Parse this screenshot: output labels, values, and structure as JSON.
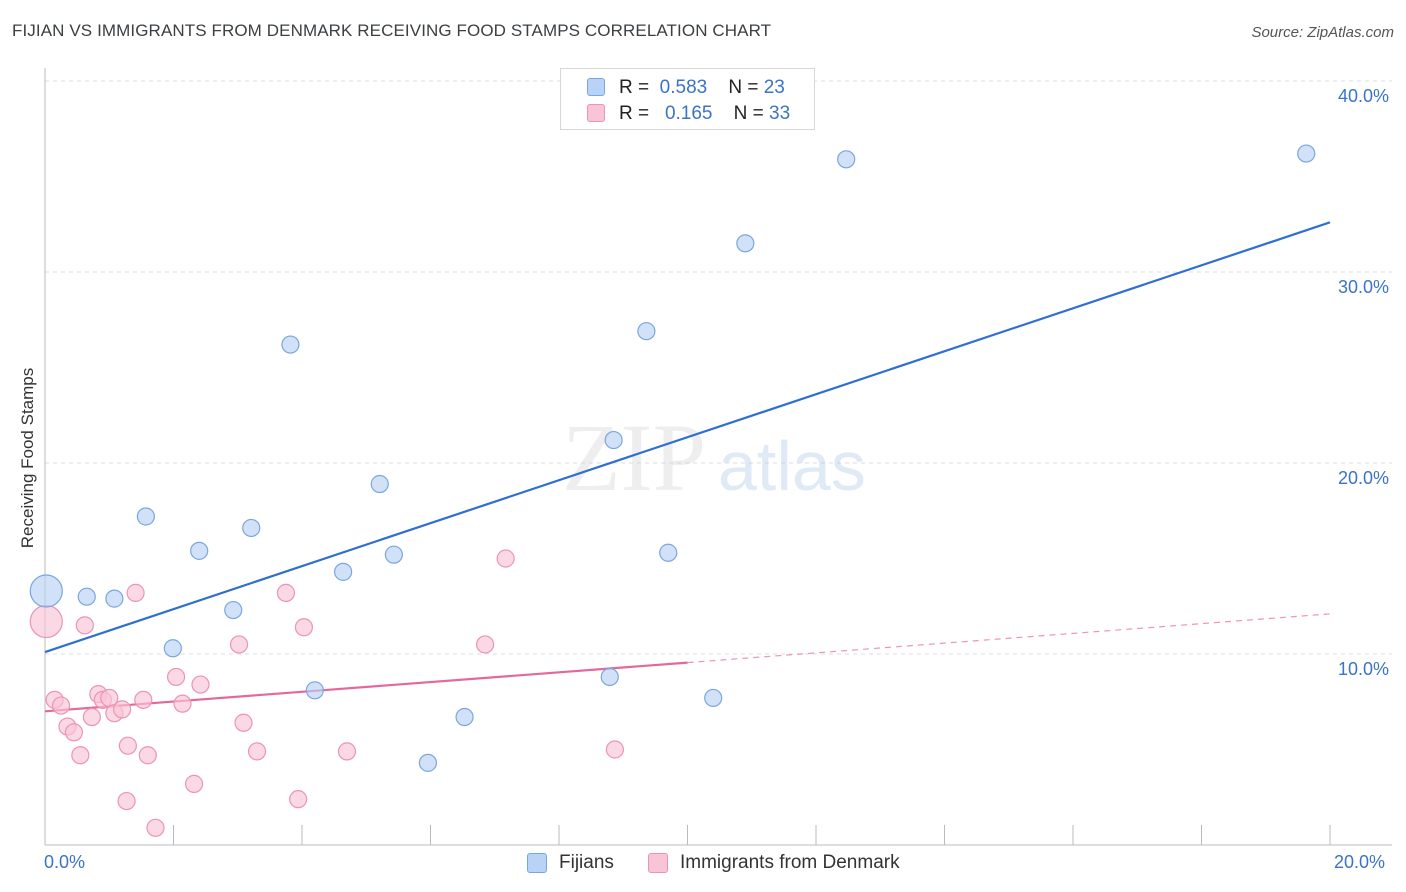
{
  "header": {
    "title": "FIJIAN VS IMMIGRANTS FROM DENMARK RECEIVING FOOD STAMPS CORRELATION CHART",
    "source": "Source: ZipAtlas.com"
  },
  "watermark": {
    "zip": "ZIP",
    "atlas": "atlas"
  },
  "legend_stats": [
    {
      "r_label": "R =",
      "r_value": "0.583",
      "n_label": "N =",
      "n_value": "23"
    },
    {
      "r_label": "R =",
      "r_value": "0.165",
      "n_label": "N =",
      "n_value": "33"
    }
  ],
  "colors": {
    "fijians_fill": "#b8d3f5",
    "fijians_stroke": "#7aa6e0",
    "fijians_line": "#2f6fd1",
    "denmark_fill": "#f9c5d6",
    "denmark_stroke": "#ec93b3",
    "denmark_line": "#e4689a",
    "grid": "#dddddd",
    "tick_text": "#3b73c7"
  },
  "chart_data": {
    "type": "scatter",
    "title": "FIJIAN VS IMMIGRANTS FROM DENMARK RECEIVING FOOD STAMPS CORRELATION CHART",
    "xlabel": "",
    "ylabel": "Receiving Food Stamps",
    "xlim": [
      0,
      20
    ],
    "ylim": [
      0,
      40
    ],
    "x_tick_labels": [
      "0.0%",
      "20.0%"
    ],
    "y_tick_labels": [
      "10.0%",
      "20.0%",
      "30.0%",
      "40.0%"
    ],
    "y_tick_values": [
      10,
      20,
      30,
      40
    ],
    "grid": true,
    "legend_position": "bottom-center",
    "series": [
      {
        "name": "Fijians",
        "r": 0.583,
        "n": 23,
        "points": [
          {
            "x": 0.02,
            "y": 13.3,
            "size": "large"
          },
          {
            "x": 0.65,
            "y": 13.0
          },
          {
            "x": 1.08,
            "y": 12.9
          },
          {
            "x": 1.57,
            "y": 17.2
          },
          {
            "x": 1.99,
            "y": 10.3
          },
          {
            "x": 2.4,
            "y": 15.4
          },
          {
            "x": 2.93,
            "y": 12.3
          },
          {
            "x": 3.21,
            "y": 16.6
          },
          {
            "x": 3.82,
            "y": 26.2
          },
          {
            "x": 4.2,
            "y": 8.1
          },
          {
            "x": 4.64,
            "y": 14.3
          },
          {
            "x": 5.21,
            "y": 18.9
          },
          {
            "x": 5.43,
            "y": 15.2
          },
          {
            "x": 5.96,
            "y": 4.3
          },
          {
            "x": 6.53,
            "y": 6.7
          },
          {
            "x": 8.79,
            "y": 8.8
          },
          {
            "x": 8.85,
            "y": 21.2
          },
          {
            "x": 9.36,
            "y": 26.9
          },
          {
            "x": 9.7,
            "y": 15.3
          },
          {
            "x": 10.4,
            "y": 7.7
          },
          {
            "x": 10.9,
            "y": 31.5
          },
          {
            "x": 12.47,
            "y": 35.9
          },
          {
            "x": 19.63,
            "y": 36.2
          }
        ],
        "trend": {
          "x0": 0,
          "y0": 10.1,
          "x1": 20,
          "y1": 32.6,
          "dashed_from": null
        }
      },
      {
        "name": "Immigrants from Denmark",
        "r": 0.165,
        "n": 33,
        "points": [
          {
            "x": 0.02,
            "y": 11.7,
            "size": "large"
          },
          {
            "x": 0.15,
            "y": 7.6
          },
          {
            "x": 0.25,
            "y": 7.3
          },
          {
            "x": 0.35,
            "y": 6.2
          },
          {
            "x": 0.45,
            "y": 5.9
          },
          {
            "x": 0.55,
            "y": 4.7
          },
          {
            "x": 0.62,
            "y": 11.5
          },
          {
            "x": 0.73,
            "y": 6.7
          },
          {
            "x": 0.83,
            "y": 7.9
          },
          {
            "x": 0.9,
            "y": 7.6
          },
          {
            "x": 1.0,
            "y": 7.7
          },
          {
            "x": 1.08,
            "y": 6.9
          },
          {
            "x": 1.2,
            "y": 7.1
          },
          {
            "x": 1.29,
            "y": 5.2
          },
          {
            "x": 1.41,
            "y": 13.2
          },
          {
            "x": 1.53,
            "y": 7.6
          },
          {
            "x": 1.6,
            "y": 4.7
          },
          {
            "x": 1.27,
            "y": 2.3
          },
          {
            "x": 1.72,
            "y": 0.9
          },
          {
            "x": 2.04,
            "y": 8.8
          },
          {
            "x": 2.14,
            "y": 7.4
          },
          {
            "x": 2.32,
            "y": 3.2
          },
          {
            "x": 2.42,
            "y": 8.4
          },
          {
            "x": 3.02,
            "y": 10.5
          },
          {
            "x": 3.09,
            "y": 6.4
          },
          {
            "x": 3.3,
            "y": 4.9
          },
          {
            "x": 3.75,
            "y": 13.2
          },
          {
            "x": 3.94,
            "y": 2.4
          },
          {
            "x": 4.03,
            "y": 11.4
          },
          {
            "x": 4.7,
            "y": 4.9
          },
          {
            "x": 6.85,
            "y": 10.5
          },
          {
            "x": 7.17,
            "y": 15.0
          },
          {
            "x": 8.87,
            "y": 5.0
          }
        ],
        "trend": {
          "x0": 0,
          "y0": 7.0,
          "x1": 20,
          "y1": 12.1,
          "dashed_from": 10
        }
      }
    ],
    "legend": [
      "Fijians",
      "Immigrants from Denmark"
    ]
  }
}
